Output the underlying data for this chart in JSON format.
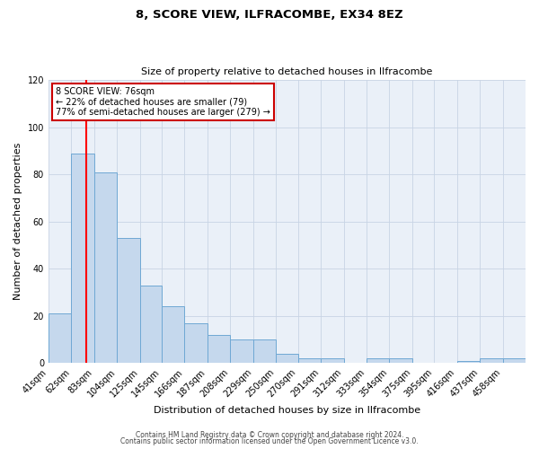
{
  "title": "8, SCORE VIEW, ILFRACOMBE, EX34 8EZ",
  "subtitle": "Size of property relative to detached houses in Ilfracombe",
  "xlabel": "Distribution of detached houses by size in Ilfracombe",
  "ylabel": "Number of detached properties",
  "bar_labels": [
    "41sqm",
    "62sqm",
    "83sqm",
    "104sqm",
    "125sqm",
    "145sqm",
    "166sqm",
    "187sqm",
    "208sqm",
    "229sqm",
    "250sqm",
    "270sqm",
    "291sqm",
    "312sqm",
    "333sqm",
    "354sqm",
    "375sqm",
    "395sqm",
    "416sqm",
    "437sqm",
    "458sqm"
  ],
  "bar_edges": [
    41,
    62,
    83,
    104,
    125,
    145,
    166,
    187,
    208,
    229,
    250,
    270,
    291,
    312,
    333,
    354,
    375,
    395,
    416,
    437,
    458
  ],
  "bar_heights": [
    21,
    89,
    81,
    53,
    33,
    24,
    17,
    12,
    10,
    10,
    4,
    2,
    2,
    0,
    2,
    2,
    0,
    0,
    1,
    2,
    2
  ],
  "bar_color": "#c5d8ed",
  "bar_edge_color": "#6fa8d4",
  "vline_x": 76,
  "ylim": [
    0,
    120
  ],
  "yticks": [
    0,
    20,
    40,
    60,
    80,
    100,
    120
  ],
  "annotation_title": "8 SCORE VIEW: 76sqm",
  "annotation_line1": "← 22% of detached houses are smaller (79)",
  "annotation_line2": "77% of semi-detached houses are larger (279) →",
  "annotation_box_color": "#ffffff",
  "annotation_box_edge": "#cc0000",
  "footer_line1": "Contains HM Land Registry data © Crown copyright and database right 2024.",
  "footer_line2": "Contains public sector information licensed under the Open Government Licence v3.0.",
  "background_color": "#ffffff",
  "plot_bg_color": "#eaf0f8",
  "grid_color": "#c8d4e4"
}
